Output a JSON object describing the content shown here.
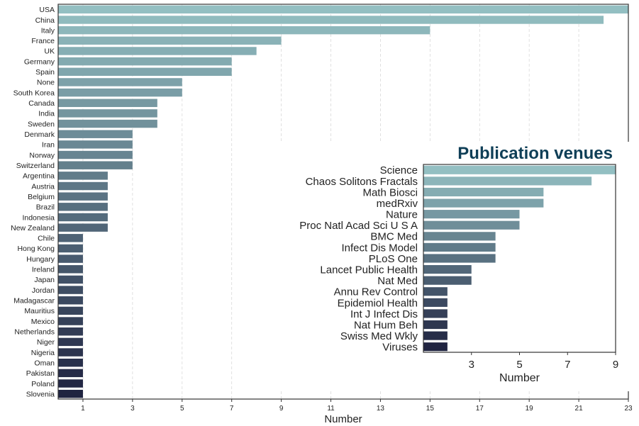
{
  "chart_data": [
    {
      "type": "bar",
      "orientation": "horizontal",
      "xlabel": "Number",
      "xlim": [
        0,
        23
      ],
      "xticks": [
        1,
        3,
        5,
        7,
        9,
        11,
        13,
        15,
        17,
        19,
        21,
        23
      ],
      "grid": "vertical dashed",
      "categories": [
        "USA",
        "China",
        "Italy",
        "France",
        "UK",
        "Germany",
        "Spain",
        "None",
        "South Korea",
        "Canada",
        "India",
        "Sweden",
        "Denmark",
        "Iran",
        "Norway",
        "Switzerland",
        "Argentina",
        "Austria",
        "Belgium",
        "Brazil",
        "Indonesia",
        "New Zealand",
        "Chile",
        "Hong Kong",
        "Hungary",
        "Ireland",
        "Japan",
        "Jordan",
        "Madagascar",
        "Mauritius",
        "Mexico",
        "Netherlands",
        "Niger",
        "Nigeria",
        "Oman",
        "Pakistan",
        "Poland",
        "Slovenia"
      ],
      "values": [
        23,
        22,
        15,
        9,
        8,
        7,
        7,
        5,
        5,
        4,
        4,
        4,
        3,
        3,
        3,
        3,
        2,
        2,
        2,
        2,
        2,
        2,
        1,
        1,
        1,
        1,
        1,
        1,
        1,
        1,
        1,
        1,
        1,
        1,
        1,
        1,
        1,
        1
      ],
      "colors": {
        "start": "#93bfc2",
        "end": "#1f2340"
      }
    },
    {
      "type": "bar",
      "orientation": "horizontal",
      "title": "Publication venues",
      "xlabel": "Number",
      "xlim": [
        1,
        9
      ],
      "xticks": [
        3,
        5,
        7,
        9
      ],
      "categories": [
        "Science",
        "Chaos Solitons Fractals",
        "Math Biosci",
        "medRxiv",
        "Nature",
        "Proc Natl Acad Sci U S A",
        "BMC Med",
        "Infect Dis Model",
        "PLoS One",
        "Lancet Public Health",
        "Nat Med",
        "Annu Rev Control",
        "Epidemiol Health",
        "Int J Infect Dis",
        "Nat Hum Beh",
        "Swiss Med Wkly",
        "Viruses"
      ],
      "values": [
        9,
        8,
        6,
        6,
        5,
        5,
        4,
        4,
        4,
        3,
        3,
        2,
        2,
        2,
        2,
        2,
        2
      ],
      "colors": {
        "start": "#93bfc2",
        "end": "#1f2340",
        "title": "#0f3f57"
      }
    }
  ]
}
